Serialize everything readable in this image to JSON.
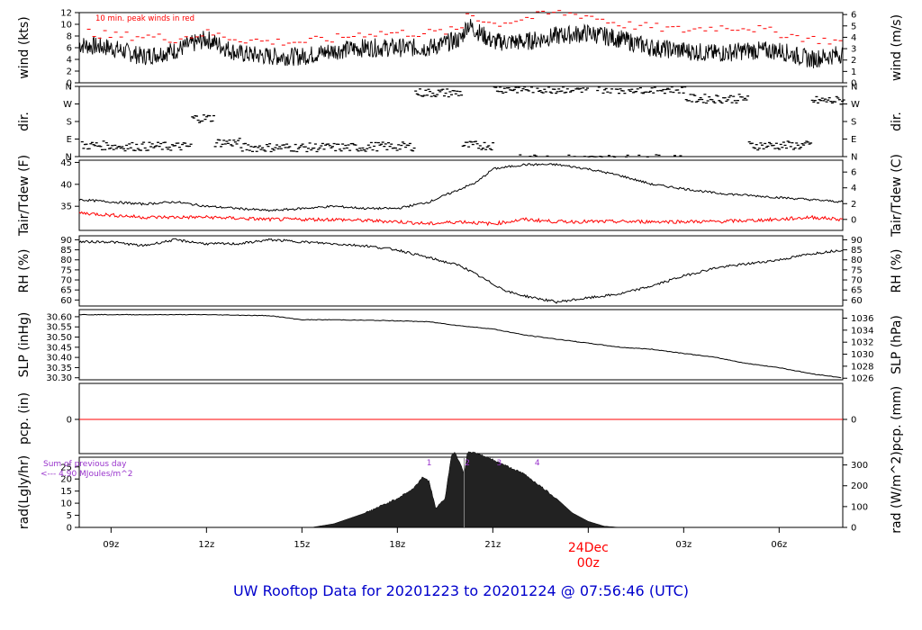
{
  "caption": "UW Rooftop Data for 20201223  to  20201224 @ 07:56:46  (UTC)",
  "x_ticks": [
    "09z",
    "12z",
    "15z",
    "18z",
    "21z",
    "24Dec",
    "03z",
    "06z"
  ],
  "x_tick_hours": [
    1,
    4,
    7,
    10,
    13,
    16,
    19,
    22
  ],
  "x_range_hours": [
    0,
    24
  ],
  "day_marker": {
    "hour": 16,
    "line1": "24Dec",
    "line2": "00z",
    "color": "#ff0000"
  },
  "colors": {
    "line": "#000000",
    "accent": "#ff0000",
    "caption": "#0000cc",
    "purple": "#9933cc",
    "fill": "#222222"
  },
  "panels": [
    {
      "id": "wind",
      "ylabel_left": "wind (kts)",
      "ylabel_right": "wind (m/s)",
      "left_ticks": [
        "0",
        "2",
        "4",
        "6",
        "8",
        "10",
        "12"
      ],
      "left_range": [
        0,
        12
      ],
      "right_ticks": [
        "0",
        "1",
        "2",
        "3",
        "4",
        "5",
        "6"
      ],
      "right_range": [
        0,
        6.17
      ],
      "note": "10 min. peak winds in red"
    },
    {
      "id": "dir",
      "ylabel_left": "dir.",
      "ylabel_right": "dir.",
      "left_ticks": [
        "N",
        "E",
        "S",
        "W",
        "N"
      ],
      "right_ticks": [
        "N",
        "E",
        "S",
        "W",
        "N"
      ],
      "range": [
        0,
        360
      ]
    },
    {
      "id": "temp",
      "ylabel_left": "Tair/Tdew (F)",
      "ylabel_right": "Tair/Tdew (C)",
      "left_ticks": [
        "35",
        "40",
        "45"
      ],
      "left_tick_values": [
        35,
        40,
        45
      ],
      "left_range": [
        29.5,
        45.5
      ],
      "right_ticks": [
        "0",
        "2",
        "4",
        "6"
      ],
      "right_tick_values": [
        0,
        2,
        4,
        6
      ]
    },
    {
      "id": "rh",
      "ylabel_left": "RH (%)",
      "ylabel_right": "RH (%)",
      "ticks": [
        "60",
        "65",
        "70",
        "75",
        "80",
        "85",
        "90"
      ],
      "range": [
        57,
        92
      ]
    },
    {
      "id": "slp",
      "ylabel_left": "SLP (inHg)",
      "ylabel_right": "SLP (hPa)",
      "left_ticks": [
        "30.30",
        "30.35",
        "30.40",
        "30.45",
        "30.50",
        "30.55",
        "30.60"
      ],
      "left_range": [
        30.29,
        30.635
      ],
      "right_ticks": [
        "1026",
        "1028",
        "1030",
        "1032",
        "1034",
        "1036"
      ]
    },
    {
      "id": "pcp",
      "ylabel_left": "pcp. (in)",
      "ylabel_right": "pcp. (mm)",
      "left_ticks": [
        "0"
      ],
      "right_ticks": [
        "0"
      ]
    },
    {
      "id": "rad",
      "ylabel_left": "rad(Lgly/hr)",
      "ylabel_right": "rad (W/m^2)",
      "left_ticks": [
        "0",
        "5",
        "10",
        "15",
        "20",
        "25"
      ],
      "left_range": [
        0,
        29
      ],
      "right_ticks": [
        "0",
        "100",
        "200",
        "300"
      ],
      "sum_label": "Sum of previous day",
      "sum_value": "<--- 4.90 MJoules/m^2",
      "markers": [
        "1",
        "2",
        "3",
        "4"
      ],
      "marker_hours": [
        11,
        12.2,
        13.2,
        14.4
      ]
    }
  ],
  "chart_data": {
    "type": "line",
    "x_unit": "hours since 2020-12-23 08:00 UTC",
    "series": [
      {
        "name": "wind",
        "x": [
          0,
          1,
          2,
          3,
          4,
          5,
          6,
          7,
          8,
          9,
          10,
          11,
          12,
          12.2,
          13,
          14,
          15,
          16,
          17,
          18,
          19,
          20,
          21,
          22,
          23,
          24
        ],
        "values": [
          6.5,
          6,
          4.5,
          5.5,
          7.5,
          5,
          4.5,
          4.5,
          5.5,
          6,
          6,
          6,
          7.5,
          10,
          7,
          7,
          8,
          8.5,
          7.5,
          6,
          5.5,
          5,
          5.5,
          5.5,
          4,
          5
        ]
      },
      {
        "name": "peak winds",
        "x": [
          0,
          1,
          2,
          3,
          4,
          5,
          6,
          7,
          8,
          9,
          10,
          11,
          12,
          12.2,
          13,
          14,
          15,
          16,
          17,
          18,
          19,
          20,
          21,
          22,
          23,
          24
        ],
        "values": [
          9,
          8,
          8,
          7.5,
          8.5,
          7.5,
          7,
          7,
          7.5,
          8.5,
          8.5,
          8.5,
          9,
          12,
          10,
          11,
          12,
          11.5,
          10,
          9.5,
          9,
          9.5,
          9.5,
          8.5,
          7.5,
          7
        ]
      },
      {
        "name": "Tair",
        "x": [
          0,
          1,
          2,
          3,
          4,
          5,
          6,
          7,
          8,
          9,
          10,
          11,
          12,
          12.5,
          13,
          14,
          15,
          16,
          17,
          18,
          19,
          20,
          21,
          22,
          23,
          24
        ],
        "values": [
          36.5,
          36,
          35.5,
          36,
          35,
          34.5,
          34,
          34.5,
          35,
          34.5,
          34.5,
          36,
          39,
          40.5,
          43.5,
          44.5,
          44.5,
          43.5,
          42,
          40,
          39,
          38,
          37.5,
          37,
          36.5,
          36
        ]
      },
      {
        "name": "Tdew",
        "x": [
          0,
          2,
          4,
          6,
          8,
          10,
          11,
          12,
          13,
          14,
          15,
          16,
          18,
          20,
          22,
          23,
          24
        ],
        "values": [
          33.5,
          32.5,
          32.5,
          32,
          32,
          31.5,
          31,
          31.5,
          31,
          32,
          31.5,
          31.5,
          31.5,
          31.5,
          32,
          32.5,
          32
        ]
      },
      {
        "name": "RH",
        "x": [
          0,
          1,
          2,
          3,
          4,
          5,
          6,
          7,
          8,
          9,
          10,
          11,
          12,
          13,
          13.5,
          14,
          15,
          16,
          17,
          18,
          19,
          20,
          21,
          22,
          23,
          24
        ],
        "values": [
          89,
          89,
          87,
          90,
          88,
          88,
          90,
          89,
          88,
          87,
          85,
          81,
          77,
          68,
          64,
          62,
          59,
          61,
          63,
          67,
          72,
          76,
          78,
          80,
          83,
          85
        ]
      },
      {
        "name": "SLP",
        "x": [
          0,
          2,
          4,
          6,
          7,
          8,
          10,
          11,
          12,
          13,
          14,
          15,
          16,
          17,
          18,
          19,
          20,
          21,
          22,
          23,
          24
        ],
        "values": [
          30.61,
          30.61,
          30.61,
          30.605,
          30.585,
          30.585,
          30.58,
          30.575,
          30.555,
          30.54,
          30.51,
          30.49,
          30.47,
          30.45,
          30.44,
          30.42,
          30.4,
          30.37,
          30.35,
          30.32,
          30.3
        ]
      },
      {
        "name": "pcp",
        "x": [
          0,
          24
        ],
        "values": [
          0,
          0
        ]
      },
      {
        "name": "rad",
        "x": [
          7.3,
          8,
          9,
          10,
          10.5,
          10.8,
          11,
          11.2,
          11.5,
          11.7,
          11.8,
          12.0,
          12.1,
          12.2,
          12.3,
          12.4,
          12.6,
          13,
          14,
          15,
          15.5,
          16,
          16.5,
          17
        ],
        "values": [
          0,
          1.5,
          6,
          12,
          16,
          21,
          19,
          8,
          12,
          30,
          31,
          26,
          22,
          31,
          31,
          31,
          30,
          28,
          22,
          12,
          6,
          2.5,
          0.5,
          0
        ]
      }
    ],
    "wind_dir_bands": [
      {
        "from": 0,
        "to": 1,
        "dir": 60
      },
      {
        "from": 1,
        "to": 3.5,
        "dir": 55
      },
      {
        "from": 3.5,
        "to": 4.2,
        "dir": 200
      },
      {
        "from": 4.2,
        "to": 5,
        "dir": 75
      },
      {
        "from": 5,
        "to": 9,
        "dir": 50
      },
      {
        "from": 9,
        "to": 10.5,
        "dir": 55
      },
      {
        "from": 10.5,
        "to": 12,
        "dir": 330
      },
      {
        "from": 12,
        "to": 13,
        "dir": 60
      },
      {
        "from": 13,
        "to": 19,
        "dir": 350
      },
      {
        "from": 19,
        "to": 21,
        "dir": 300
      },
      {
        "from": 21,
        "to": 23,
        "dir": 60
      },
      {
        "from": 23,
        "to": 24,
        "dir": 290
      }
    ]
  }
}
